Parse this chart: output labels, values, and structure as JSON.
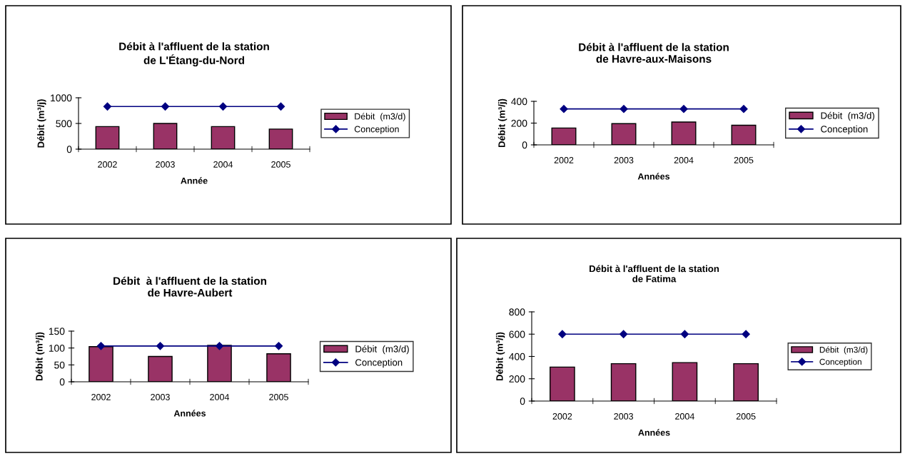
{
  "chart_data": [
    {
      "type": "bar",
      "title": "Débit à l'affluent de la station\nde L'Étang-du-Nord",
      "xlabel": "Année",
      "ylabel": "Débit (m³/j)",
      "categories": [
        "2002",
        "2003",
        "2004",
        "2005"
      ],
      "ylim": [
        0,
        1000
      ],
      "yticks": [
        0,
        500,
        1000
      ],
      "legend": "right",
      "marker": "diamond",
      "series": [
        {
          "name": "Débit  (m3/d)",
          "color": "#993366",
          "values": [
            440,
            500,
            440,
            390
          ]
        },
        {
          "name": "Conception",
          "type": "line",
          "color": "#000080",
          "values": [
            830,
            830,
            830,
            830
          ]
        }
      ]
    },
    {
      "type": "bar",
      "title": "Débit à l'affluent de la station\nde Havre-aux-Maisons",
      "xlabel": "Années",
      "ylabel": "Débit (m³/j)",
      "categories": [
        "2002",
        "2003",
        "2004",
        "2005"
      ],
      "ylim": [
        0,
        400
      ],
      "yticks": [
        0,
        200,
        400
      ],
      "legend": "right",
      "marker": "diamond",
      "series": [
        {
          "name": "Débit  (m3/d)",
          "color": "#993366",
          "values": [
            155,
            195,
            210,
            180
          ]
        },
        {
          "name": "Conception",
          "type": "line",
          "color": "#000080",
          "values": [
            330,
            330,
            330,
            330
          ]
        }
      ]
    },
    {
      "type": "bar",
      "title": "Débit  à l'affluent de la station\nde Havre-Aubert",
      "xlabel": "Années",
      "ylabel": "Débit (m³/j)",
      "categories": [
        "2002",
        "2003",
        "2004",
        "2005"
      ],
      "ylim": [
        0,
        150
      ],
      "yticks": [
        0,
        50,
        100,
        150
      ],
      "legend": "right",
      "marker": "diamond",
      "series": [
        {
          "name": "Débit  (m3/d)",
          "color": "#993366",
          "values": [
            104,
            75,
            108,
            83
          ]
        },
        {
          "name": "Conception",
          "type": "line",
          "color": "#000080",
          "values": [
            106,
            106,
            106,
            106
          ]
        }
      ]
    },
    {
      "type": "bar",
      "title": "Débit à l'affluent de la station\nde Fatima",
      "xlabel": "Années",
      "ylabel": "Débit (m³/j)",
      "categories": [
        "2002",
        "2003",
        "2004",
        "2005"
      ],
      "ylim": [
        0,
        800
      ],
      "yticks": [
        0,
        200,
        400,
        600,
        800
      ],
      "legend": "right",
      "marker": "diamond",
      "series": [
        {
          "name": "Débit  (m3/d)",
          "color": "#993366",
          "values": [
            305,
            335,
            345,
            335
          ]
        },
        {
          "name": "Conception",
          "type": "line",
          "color": "#000080",
          "values": [
            600,
            600,
            600,
            600
          ]
        }
      ]
    }
  ]
}
